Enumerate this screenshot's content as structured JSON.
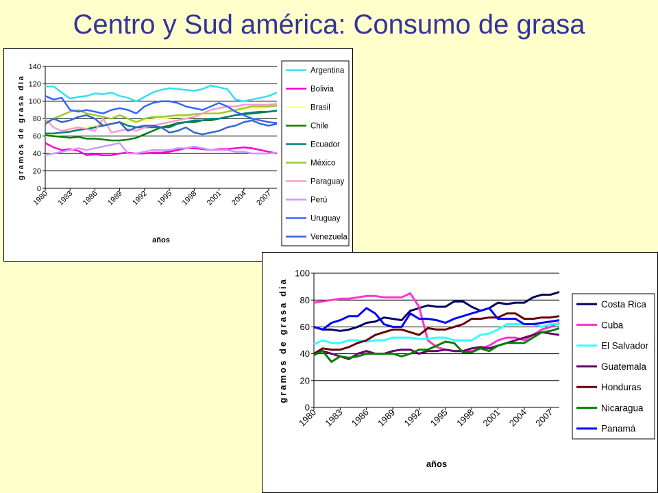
{
  "slide": {
    "title": "Centro y Sud américa: Consumo de grasa"
  },
  "chart_data": [
    {
      "type": "line",
      "ylabel": "gramos de grasa dia",
      "xlabel": "años",
      "ylim": [
        0,
        140
      ],
      "yticks": [
        0,
        20,
        40,
        60,
        80,
        100,
        120,
        140
      ],
      "grid": true,
      "legend": "right",
      "x": [
        1980,
        1981,
        1982,
        1983,
        1984,
        1985,
        1986,
        1987,
        1988,
        1989,
        1990,
        1991,
        1992,
        1993,
        1994,
        1995,
        1996,
        1997,
        1998,
        1999,
        2000,
        2001,
        2002,
        2003,
        2004,
        2005,
        2006,
        2007,
        2008
      ],
      "xtick_labels": [
        "1980",
        "1983",
        "1986",
        "1989",
        "1992",
        "1995",
        "1998",
        "2001",
        "2004",
        "2007"
      ],
      "series": [
        {
          "name": "Argentina",
          "color": "#33e0f0",
          "values": [
            117,
            117,
            110,
            103,
            105,
            106,
            109,
            108,
            110,
            106,
            104,
            100,
            105,
            110,
            113,
            115,
            114,
            113,
            112,
            114,
            118,
            116,
            114,
            102,
            100,
            102,
            104,
            106,
            110
          ]
        },
        {
          "name": "Bolivia",
          "color": "#ff00cc",
          "values": [
            52,
            47,
            44,
            45,
            43,
            38,
            39,
            38,
            38,
            40,
            41,
            40,
            40,
            41,
            41,
            42,
            44,
            46,
            46,
            45,
            44,
            45,
            45,
            46,
            47,
            46,
            44,
            42,
            40
          ]
        },
        {
          "name": "Brasil",
          "color": "#ffff99",
          "values": [
            60,
            62,
            64,
            66,
            68,
            70,
            72,
            73,
            74,
            75,
            76,
            77,
            78,
            79,
            80,
            81,
            82,
            83,
            84,
            85,
            86,
            87,
            88,
            89,
            90,
            91,
            92,
            93,
            94
          ]
        },
        {
          "name": "Chile",
          "color": "#008000",
          "values": [
            61,
            60,
            59,
            58,
            59,
            57,
            57,
            56,
            55,
            55,
            56,
            58,
            62,
            66,
            70,
            72,
            75,
            76,
            76,
            78,
            78,
            80,
            82,
            84,
            85,
            86,
            87,
            88,
            89
          ]
        },
        {
          "name": "Ecuador",
          "color": "#008080",
          "values": [
            63,
            63,
            64,
            65,
            67,
            68,
            70,
            72,
            74,
            76,
            72,
            70,
            70,
            70,
            70,
            70,
            74,
            76,
            78,
            78,
            80,
            80,
            82,
            84,
            86,
            87,
            88,
            88,
            89
          ]
        },
        {
          "name": "México",
          "color": "#99cc33",
          "values": [
            75,
            80,
            84,
            88,
            90,
            86,
            84,
            82,
            80,
            84,
            80,
            76,
            80,
            82,
            82,
            83,
            84,
            84,
            85,
            86,
            86,
            86,
            88,
            90,
            92,
            94,
            94,
            94,
            95
          ]
        },
        {
          "name": "Paraguay",
          "color": "#ff99cc",
          "values": [
            80,
            70,
            66,
            68,
            70,
            68,
            66,
            80,
            64,
            66,
            68,
            66,
            70,
            72,
            74,
            76,
            78,
            80,
            82,
            86,
            90,
            92,
            94,
            94,
            96,
            96,
            96,
            96,
            97
          ]
        },
        {
          "name": "Perú",
          "color": "#cc99ff",
          "values": [
            38,
            40,
            42,
            44,
            46,
            44,
            46,
            48,
            50,
            52,
            40,
            40,
            42,
            44,
            44,
            44,
            46,
            46,
            48,
            46,
            44,
            44,
            44,
            42,
            42,
            40,
            40,
            40,
            41
          ]
        },
        {
          "name": "Uruguay",
          "color": "#3366ff",
          "values": [
            106,
            102,
            104,
            90,
            88,
            90,
            88,
            86,
            90,
            92,
            90,
            86,
            94,
            98,
            100,
            100,
            98,
            94,
            92,
            90,
            94,
            98,
            94,
            88,
            84,
            80,
            78,
            76,
            75
          ]
        },
        {
          "name": "Venezuela",
          "color": "#3366cc",
          "values": [
            74,
            80,
            76,
            78,
            82,
            84,
            80,
            72,
            74,
            76,
            66,
            70,
            72,
            72,
            70,
            64,
            66,
            70,
            64,
            62,
            64,
            66,
            70,
            72,
            76,
            78,
            74,
            72,
            74
          ]
        }
      ]
    },
    {
      "type": "line",
      "ylabel": "gramos de grasa dia",
      "xlabel": "años",
      "ylim": [
        0,
        100
      ],
      "yticks": [
        0,
        20,
        40,
        60,
        80,
        100
      ],
      "grid": true,
      "legend": "right",
      "x": [
        1980,
        1981,
        1982,
        1983,
        1984,
        1985,
        1986,
        1987,
        1988,
        1989,
        1990,
        1991,
        1992,
        1993,
        1994,
        1995,
        1996,
        1997,
        1998,
        1999,
        2000,
        2001,
        2002,
        2003,
        2004,
        2005,
        2006,
        2007,
        2008
      ],
      "xtick_labels": [
        "1980",
        "1983",
        "1986",
        "1989",
        "1992",
        "1995",
        "1998",
        "2001",
        "2004",
        "2007"
      ],
      "series": [
        {
          "name": "Costa Rica",
          "color": "#000066",
          "values": [
            60,
            58,
            58,
            57,
            58,
            60,
            63,
            64,
            67,
            66,
            65,
            72,
            74,
            76,
            75,
            75,
            79,
            79,
            75,
            72,
            74,
            78,
            77,
            78,
            78,
            82,
            84,
            84,
            86
          ]
        },
        {
          "name": "Cuba",
          "color": "#ff33cc",
          "values": [
            78,
            79,
            80,
            81,
            81,
            82,
            83,
            83,
            82,
            82,
            82,
            85,
            75,
            50,
            45,
            43,
            42,
            42,
            42,
            44,
            46,
            50,
            52,
            52,
            50,
            54,
            58,
            60,
            63
          ]
        },
        {
          "name": "El Salvador",
          "color": "#33ffff",
          "values": [
            47,
            50,
            48,
            48,
            50,
            50,
            49,
            50,
            50,
            52,
            52,
            52,
            51,
            51,
            52,
            52,
            50,
            50,
            50,
            54,
            55,
            58,
            62,
            62,
            62,
            62,
            60,
            62,
            62
          ]
        },
        {
          "name": "Guatemala",
          "color": "#660066",
          "values": [
            40,
            42,
            40,
            38,
            36,
            40,
            42,
            40,
            40,
            42,
            43,
            43,
            40,
            42,
            42,
            43,
            42,
            42,
            44,
            45,
            44,
            46,
            48,
            50,
            52,
            54,
            56,
            55,
            54
          ]
        },
        {
          "name": "Honduras",
          "color": "#660000",
          "values": [
            40,
            44,
            43,
            43,
            45,
            48,
            50,
            54,
            56,
            58,
            58,
            56,
            54,
            59,
            58,
            58,
            60,
            62,
            66,
            66,
            67,
            67,
            70,
            70,
            66,
            66,
            67,
            67,
            68
          ]
        },
        {
          "name": "Nicaragua",
          "color": "#008000",
          "values": [
            39,
            42,
            34,
            38,
            37,
            38,
            40,
            40,
            40,
            40,
            38,
            40,
            43,
            43,
            46,
            49,
            48,
            41,
            41,
            44,
            42,
            46,
            48,
            48,
            48,
            52,
            56,
            57,
            59
          ]
        },
        {
          "name": "Panamá",
          "color": "#0000ff",
          "values": [
            60,
            58,
            63,
            65,
            68,
            68,
            74,
            70,
            62,
            60,
            60,
            70,
            66,
            66,
            65,
            63,
            66,
            68,
            70,
            72,
            74,
            66,
            66,
            66,
            62,
            62,
            63,
            64,
            65
          ]
        }
      ]
    }
  ]
}
